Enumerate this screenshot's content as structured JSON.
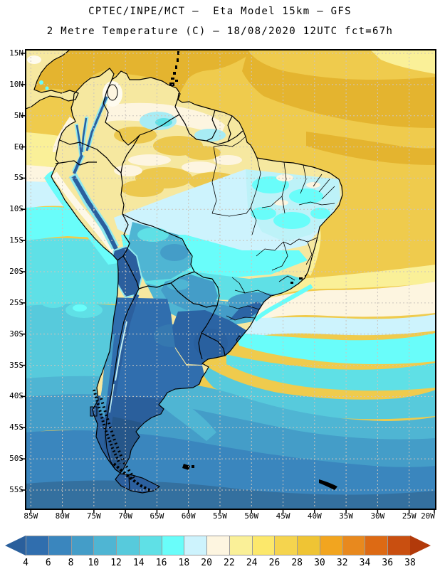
{
  "header": {
    "title_line1": "CPTEC/INPE/MCT –  Eta Model 15km – GFS",
    "title_line2": "2 Metre Temperature (C) – 18/08/2020 12UTC fct=67h"
  },
  "axes": {
    "lat_labels": [
      "15N",
      "10N",
      "5N",
      "EQ",
      "5S",
      "10S",
      "15S",
      "20S",
      "25S",
      "30S",
      "35S",
      "40S",
      "45S",
      "50S",
      "55S"
    ],
    "lon_labels": [
      "85W",
      "80W",
      "75W",
      "70W",
      "65W",
      "60W",
      "55W",
      "50W",
      "45W",
      "40W",
      "35W",
      "30W",
      "25W",
      "20W"
    ]
  },
  "colorbar": {
    "labels": [
      "4",
      "6",
      "8",
      "10",
      "12",
      "14",
      "16",
      "18",
      "20",
      "22",
      "24",
      "26",
      "28",
      "30",
      "32",
      "34",
      "36",
      "38"
    ],
    "cell_colors": [
      "#306EAE",
      "#3A86BE",
      "#449DC8",
      "#4FB5D3",
      "#57CADC",
      "#5FE0E6",
      "#69FDFA",
      "#CDF3FD",
      "#FDF5E0",
      "#FAF098",
      "#FCE86B",
      "#F5D44E",
      "#EFC434",
      "#F2A51F",
      "#E8891E",
      "#DD6A14",
      "#C94F10"
    ],
    "left_arrow_color": "#2A5F9C",
    "right_arrow_color": "#B23A0A"
  },
  "map": {
    "palette": {
      "t_lt4": "#2A5F9C",
      "t4": "#306EAE",
      "t6": "#3A86BE",
      "t8": "#449DC8",
      "t10": "#4FB5D3",
      "t12": "#57CADC",
      "t14": "#5FE0E6",
      "t16": "#69FDFA",
      "t18": "#CDF3FD",
      "t20": "#FDF5E0",
      "t22": "#FAF098",
      "t24": "#FCE86B",
      "ocean_gold": "#EFCB4D",
      "gold_deep": "#E4B42F",
      "land_yellow": "#F6E8A0",
      "land_gold": "#ECC84E",
      "white_warm": "#FEFBEF",
      "cold_region": "#2B64A4",
      "uruguay_dark": "#29609F",
      "pampas_blue": "#3578B0",
      "patagonia_core": "#265689",
      "bottom_ocean": "#34709F",
      "andes_fringe": "#90E9EF",
      "andes_core": "#2B5F9E",
      "ridge_light": "#BFEFF3",
      "mottle_cyan": "#A8ECF4",
      "ne_mottle": "#BDF2F8",
      "coast_cream": "#FDF8E8",
      "grid": "#CCC5BD",
      "frame": "#000000"
    }
  }
}
